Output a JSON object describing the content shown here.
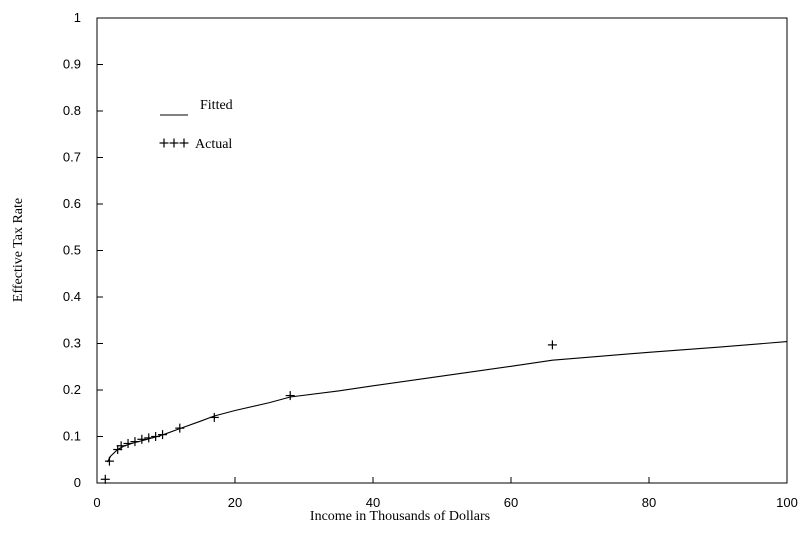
{
  "chart_data": {
    "type": "line",
    "title": "",
    "xlabel": "Income in Thousands of Dollars",
    "ylabel": "Effective Tax Rate",
    "xlim": [
      0,
      100
    ],
    "ylim": [
      0,
      1
    ],
    "x_ticks": [
      0,
      20,
      40,
      60,
      80,
      100
    ],
    "y_ticks": [
      0,
      0.1,
      0.2,
      0.3,
      0.4,
      0.5,
      0.6,
      0.7,
      0.8,
      0.9,
      1
    ],
    "x_tick_labels": [
      "0",
      "20",
      "40",
      "60",
      "80",
      "100"
    ],
    "y_tick_labels": [
      "0",
      "0.1",
      "0.2",
      "0.3",
      "0.4",
      "0.5",
      "0.6",
      "0.7",
      "0.8",
      "0.9",
      "1"
    ],
    "grid": false,
    "legend_position": "top-left",
    "series": [
      {
        "name": "Fitted",
        "style": "line",
        "x": [
          1.5,
          2,
          3,
          4,
          5,
          6,
          7,
          8,
          9,
          10,
          12,
          15,
          17,
          20,
          25,
          28,
          35,
          40,
          50,
          60,
          66,
          70,
          80,
          90,
          100
        ],
        "y": [
          0.045,
          0.058,
          0.072,
          0.08,
          0.085,
          0.089,
          0.093,
          0.097,
          0.101,
          0.106,
          0.117,
          0.133,
          0.144,
          0.156,
          0.173,
          0.185,
          0.198,
          0.209,
          0.23,
          0.251,
          0.264,
          0.269,
          0.281,
          0.292,
          0.304
        ]
      },
      {
        "name": "Actual",
        "style": "markers",
        "marker": "+",
        "x": [
          1.2,
          1.8,
          3,
          3.5,
          4.5,
          5.5,
          6.5,
          7.5,
          8.5,
          9.5,
          12,
          17,
          28,
          66
        ],
        "y": [
          0.008,
          0.047,
          0.072,
          0.08,
          0.085,
          0.089,
          0.094,
          0.097,
          0.1,
          0.104,
          0.118,
          0.141,
          0.188,
          0.297
        ]
      }
    ]
  }
}
